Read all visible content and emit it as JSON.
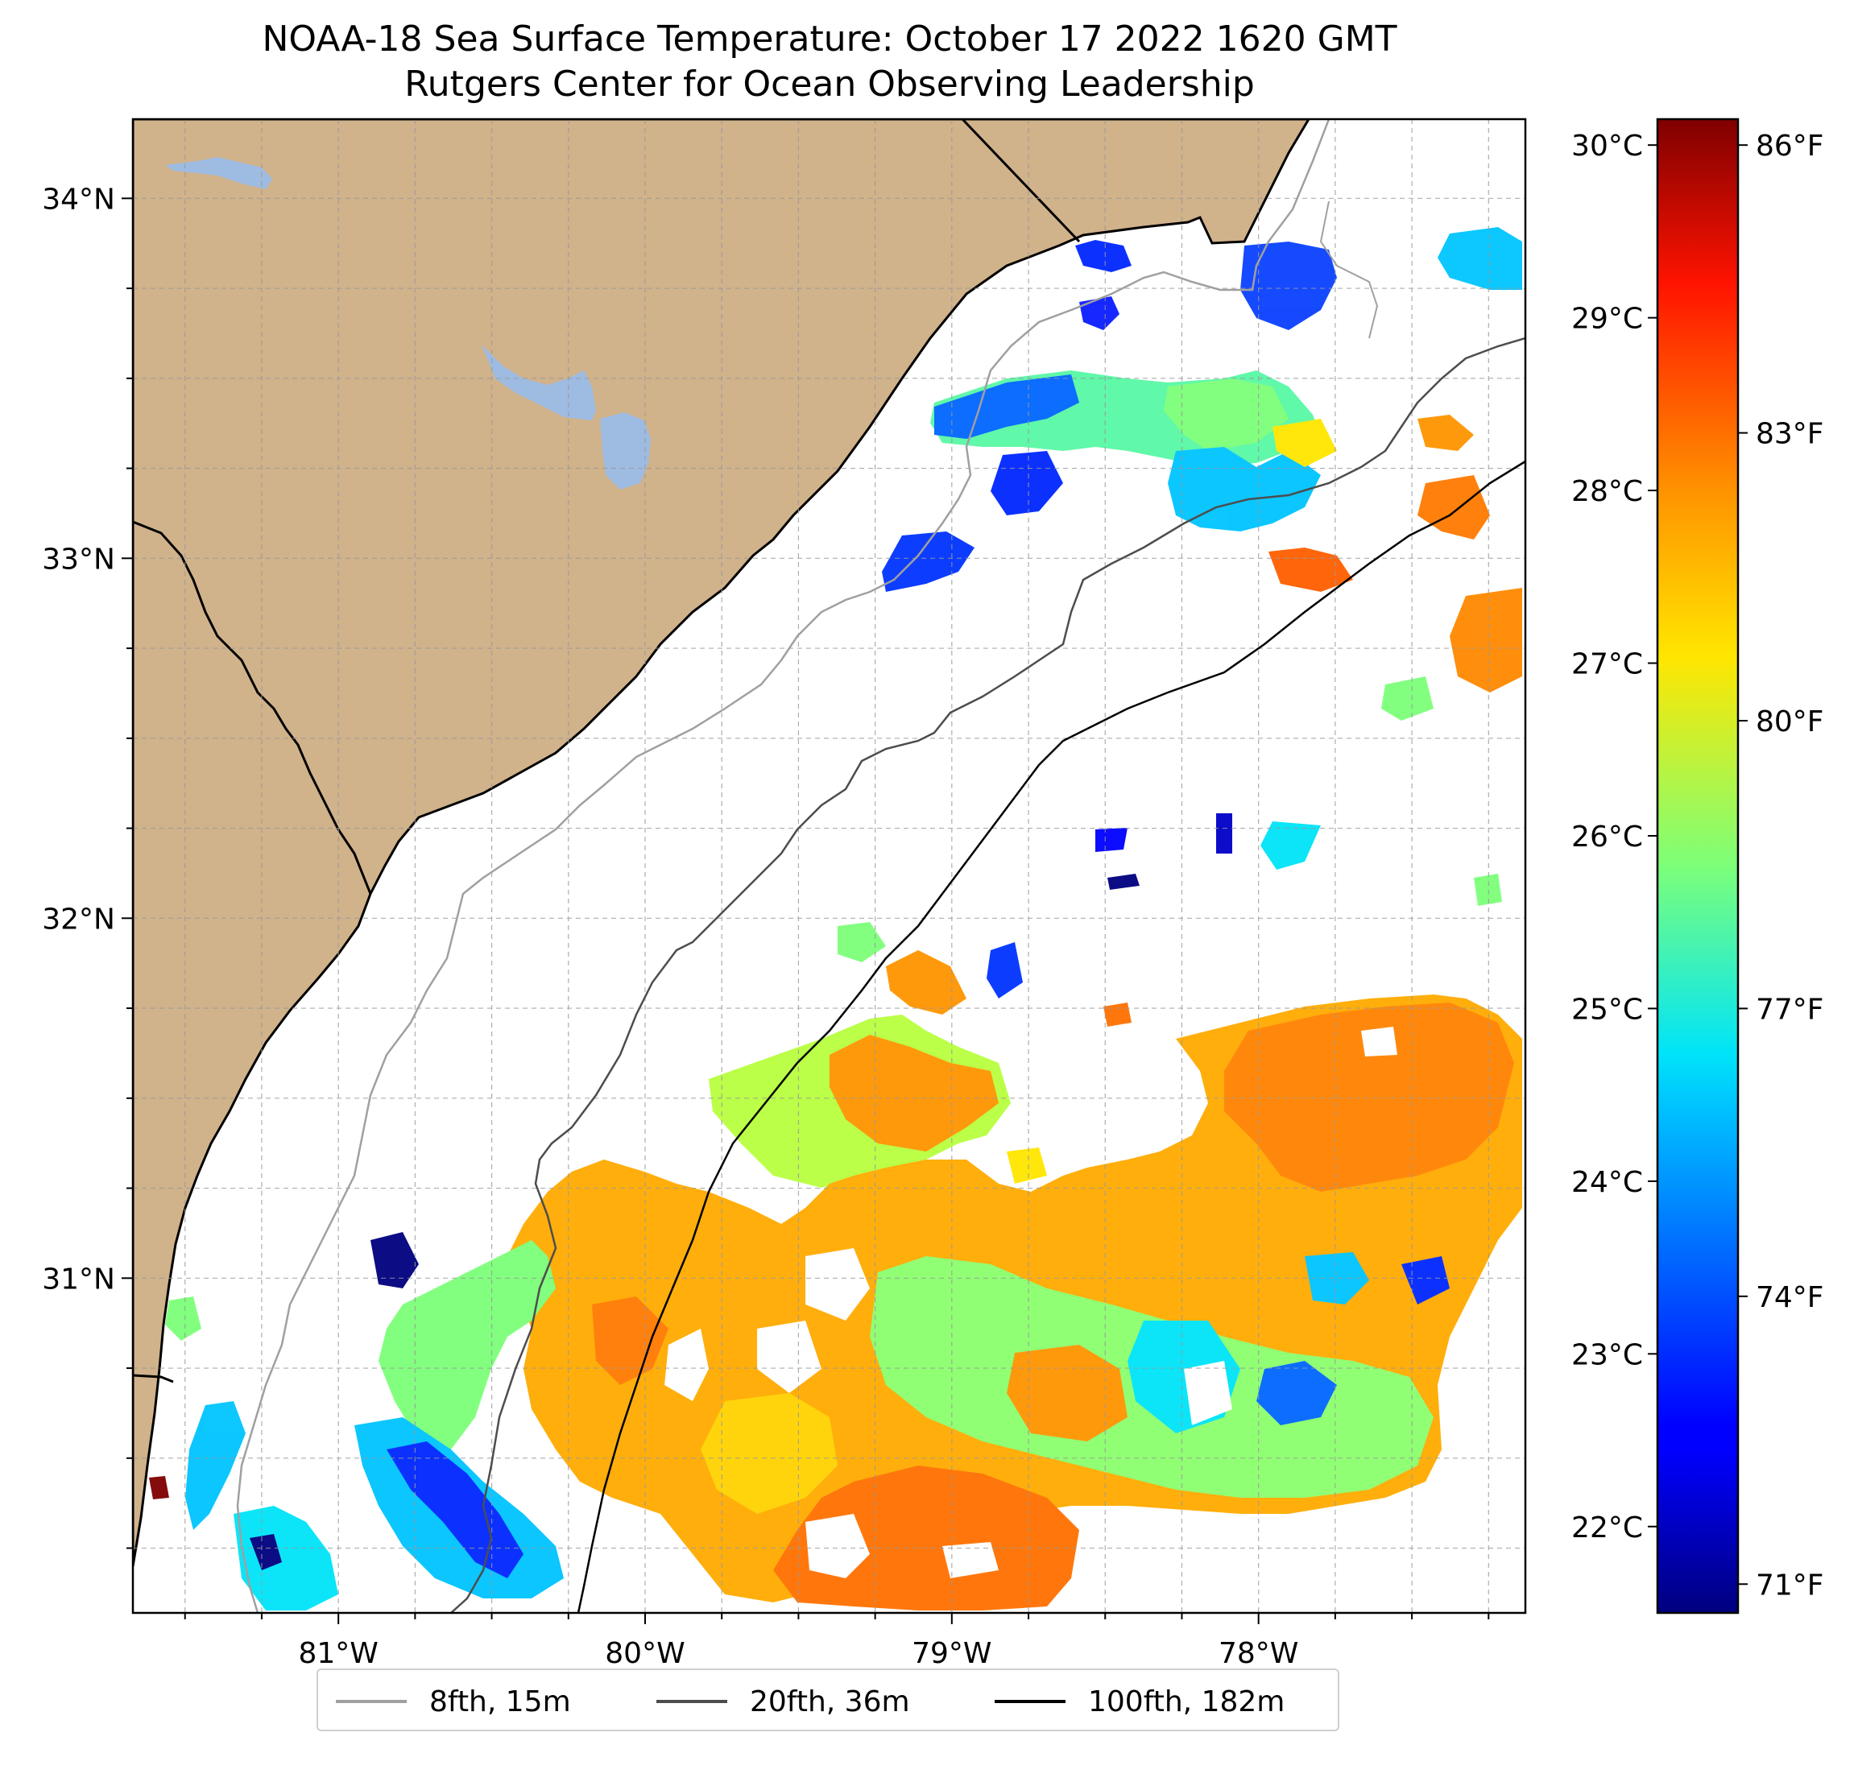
{
  "title": {
    "line1": "NOAA-18 Sea Surface Temperature: October 17 2022 1620 GMT",
    "line2": "Rutgers Center for Ocean Observing Leadership"
  },
  "map": {
    "lon_range": [
      -81.67,
      -77.13
    ],
    "lat_range": [
      30.07,
      34.22
    ],
    "lon_ticks": [
      {
        "value": -81,
        "label": "81°W"
      },
      {
        "value": -80,
        "label": "80°W"
      },
      {
        "value": -79,
        "label": "79°W"
      },
      {
        "value": -78,
        "label": "78°W"
      }
    ],
    "lat_ticks": [
      {
        "value": 31,
        "label": "31°N"
      },
      {
        "value": 32,
        "label": "32°N"
      },
      {
        "value": 33,
        "label": "33°N"
      },
      {
        "value": 34,
        "label": "34°N"
      }
    ],
    "gridlines": true,
    "land_color": "#d0b28b",
    "lake_color": "#9ebbe2",
    "coast_color": "#000000",
    "ocean_color": "#ffffff"
  },
  "colorbar": {
    "colormap": "jet",
    "celsius_range": [
      21.5,
      30.15
    ],
    "celsius_ticks": [
      {
        "value": 22,
        "label": "22°C"
      },
      {
        "value": 23,
        "label": "23°C"
      },
      {
        "value": 24,
        "label": "24°C"
      },
      {
        "value": 25,
        "label": "25°C"
      },
      {
        "value": 26,
        "label": "26°C"
      },
      {
        "value": 27,
        "label": "27°C"
      },
      {
        "value": 28,
        "label": "28°C"
      },
      {
        "value": 29,
        "label": "29°C"
      },
      {
        "value": 30,
        "label": "30°C"
      }
    ],
    "fahrenheit_ticks": [
      {
        "value": 71,
        "label": "71°F"
      },
      {
        "value": 74,
        "label": "74°F"
      },
      {
        "value": 77,
        "label": "77°F"
      },
      {
        "value": 80,
        "label": "80°F"
      },
      {
        "value": 83,
        "label": "83°F"
      },
      {
        "value": 86,
        "label": "86°F"
      }
    ]
  },
  "legend": [
    {
      "label": "8fth, 15m",
      "color": "#a0a0a0"
    },
    {
      "label": "20fth, 36m",
      "color": "#4d4d4d"
    },
    {
      "label": "100fth, 182m",
      "color": "#000000"
    }
  ]
}
